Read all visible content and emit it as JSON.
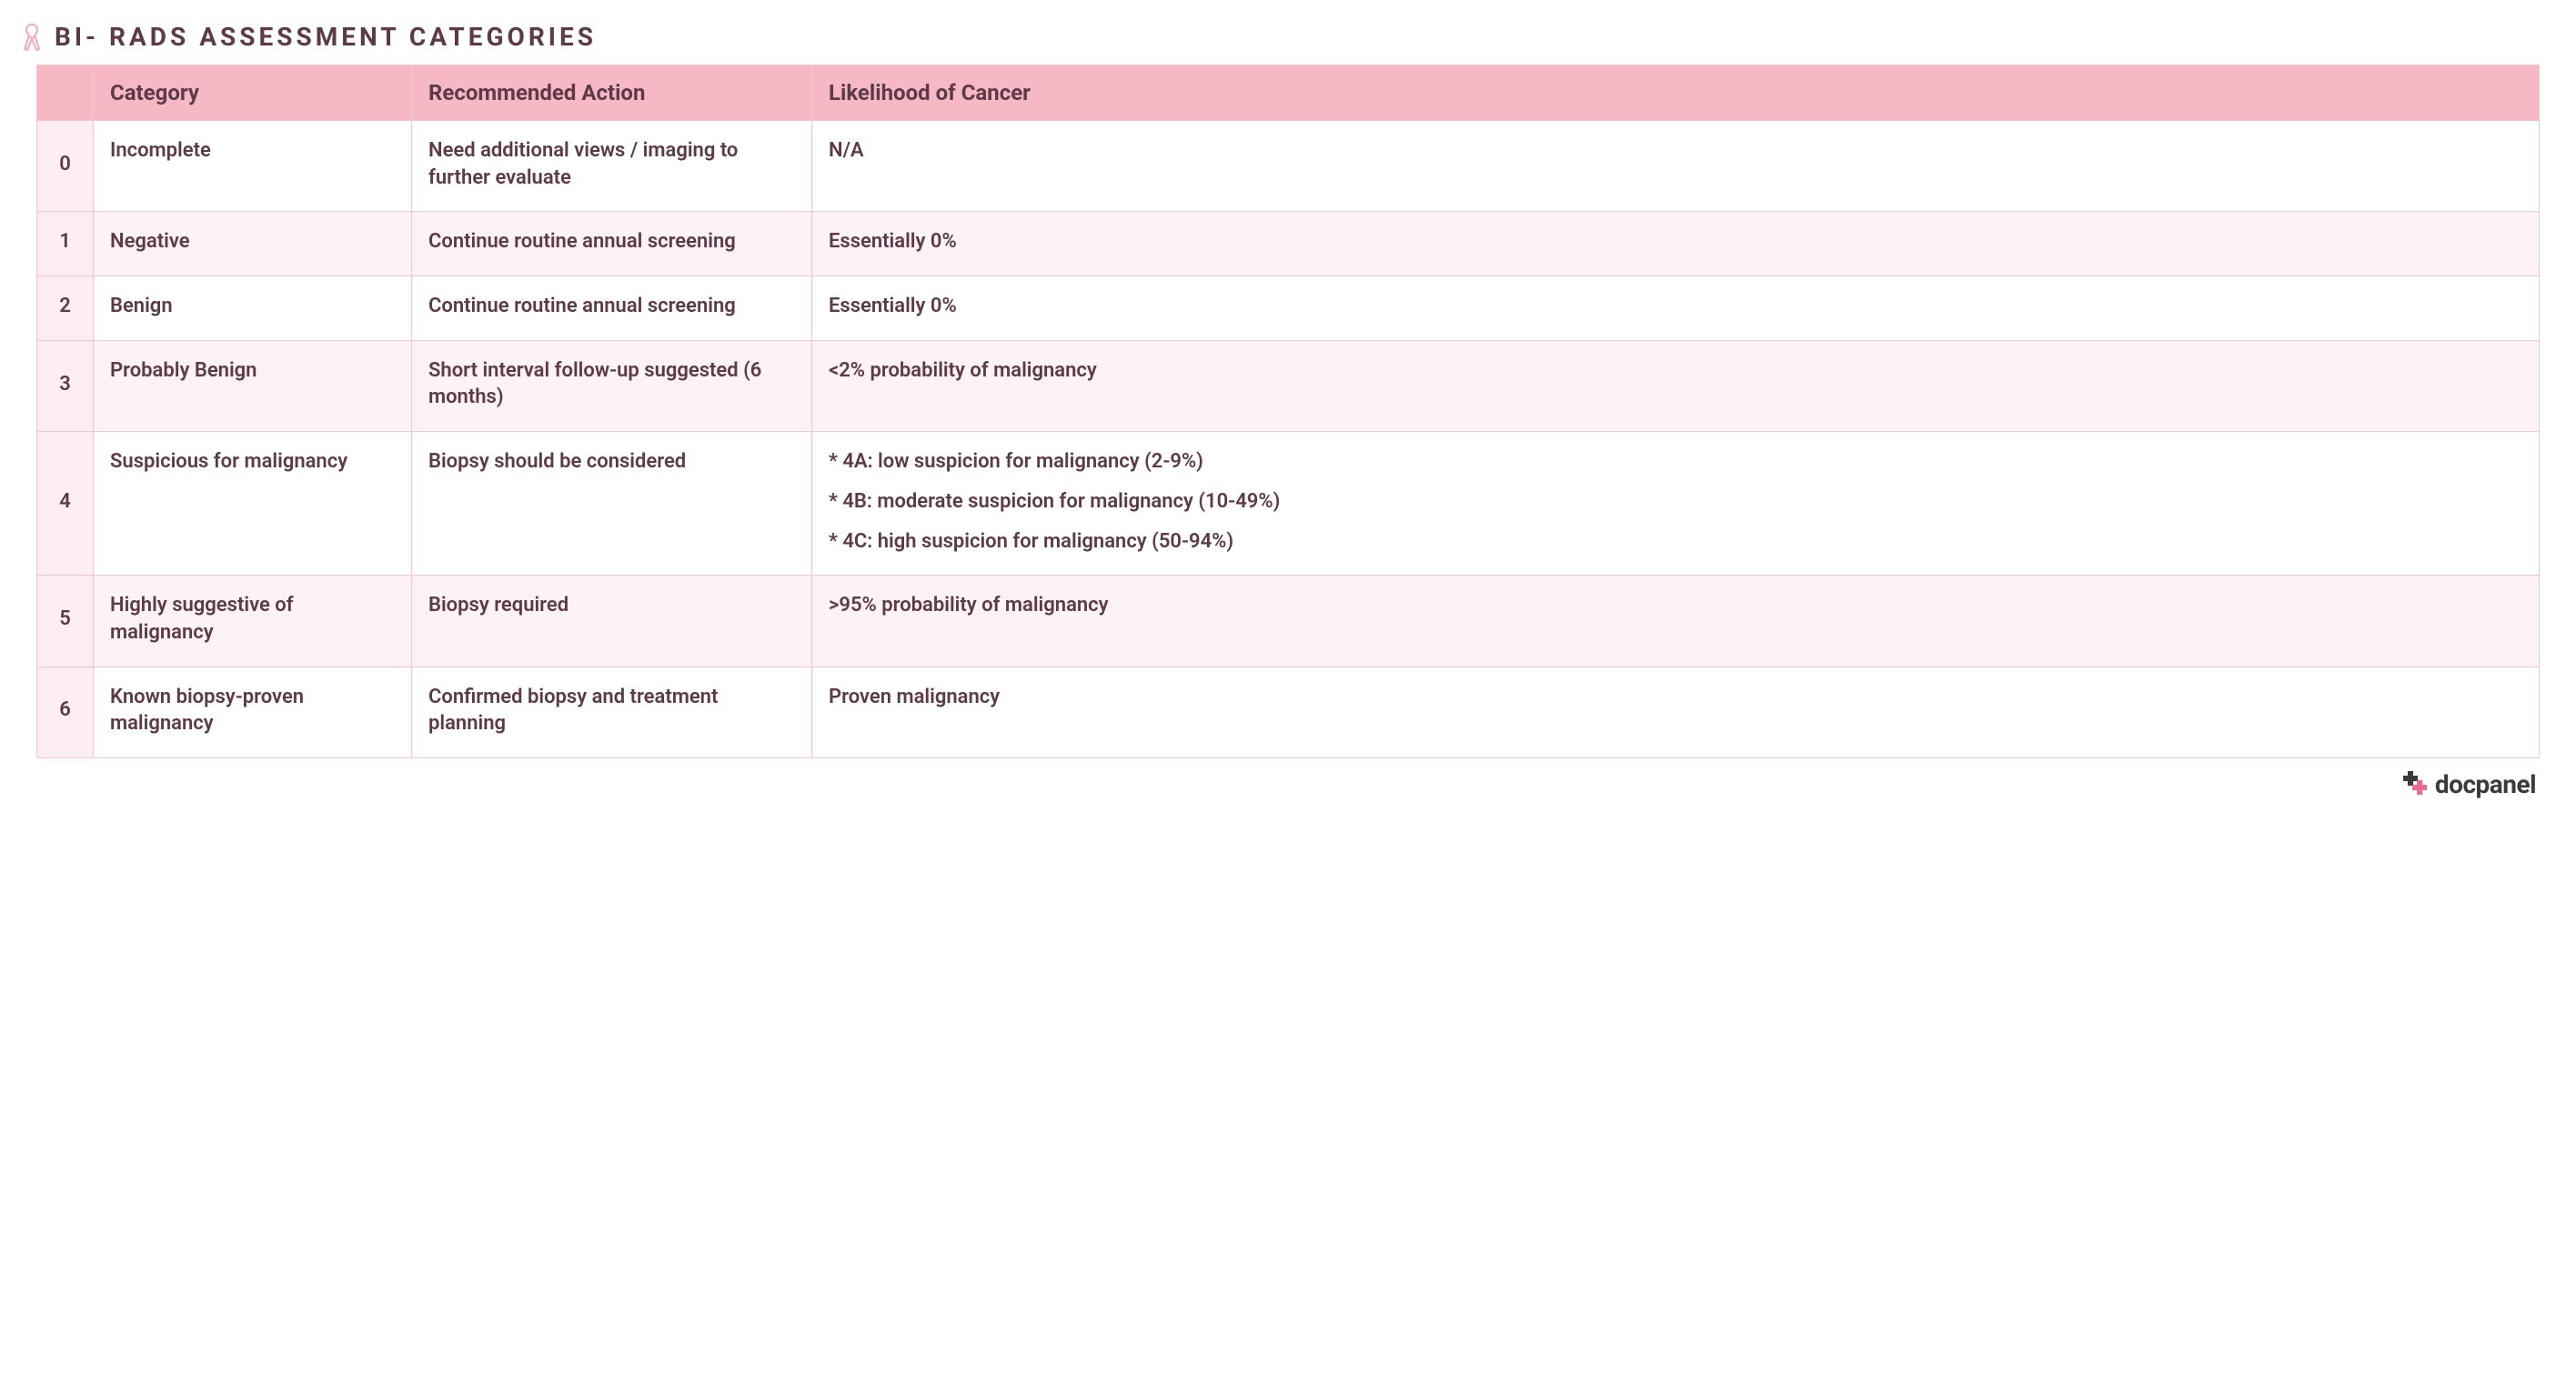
{
  "colors": {
    "text_primary": "#5c3a47",
    "header_bg": "#f7b8c6",
    "num_col_bg": "#fdeef2",
    "row_alt_bg": "#fdf2f5",
    "border": "#f3c7d2",
    "ribbon": "#f4a9bd",
    "footer_text": "#3a3a3a",
    "footer_accent": "#e96a8d"
  },
  "title": "BI- RADS ASSESSMENT CATEGORIES",
  "table": {
    "columns": [
      "",
      "Category",
      "Recommended Action",
      "Likelihood of Cancer"
    ],
    "rows": [
      {
        "num": "0",
        "category": "Incomplete",
        "action": "Need additional views / imaging to further evaluate",
        "likelihood": [
          "N/A"
        ]
      },
      {
        "num": "1",
        "category": "Negative",
        "action": "Continue routine annual screening",
        "likelihood": [
          "Essentially 0%"
        ]
      },
      {
        "num": "2",
        "category": "Benign",
        "action": "Continue routine annual screening",
        "likelihood": [
          "Essentially 0%"
        ]
      },
      {
        "num": "3",
        "category": "Probably Benign",
        "action": "Short interval follow-up suggested (6 months)",
        "likelihood": [
          "<2% probability of malignancy"
        ]
      },
      {
        "num": "4",
        "category": "Suspicious for malignancy",
        "action": "Biopsy should be considered",
        "likelihood": [
          "* 4A: low suspicion for malignancy (2-9%)",
          "* 4B: moderate suspicion for malignancy (10-49%)",
          "* 4C: high suspicion for malignancy (50-94%)"
        ]
      },
      {
        "num": "5",
        "category": "Highly suggestive of malignancy",
        "action": "Biopsy required",
        "likelihood": [
          ">95% probability of malignancy"
        ]
      },
      {
        "num": "6",
        "category": "Known biopsy-proven malignancy",
        "action": "Confirmed biopsy and treatment planning",
        "likelihood": [
          "Proven malignancy"
        ]
      }
    ]
  },
  "footer_brand": "docpanel"
}
